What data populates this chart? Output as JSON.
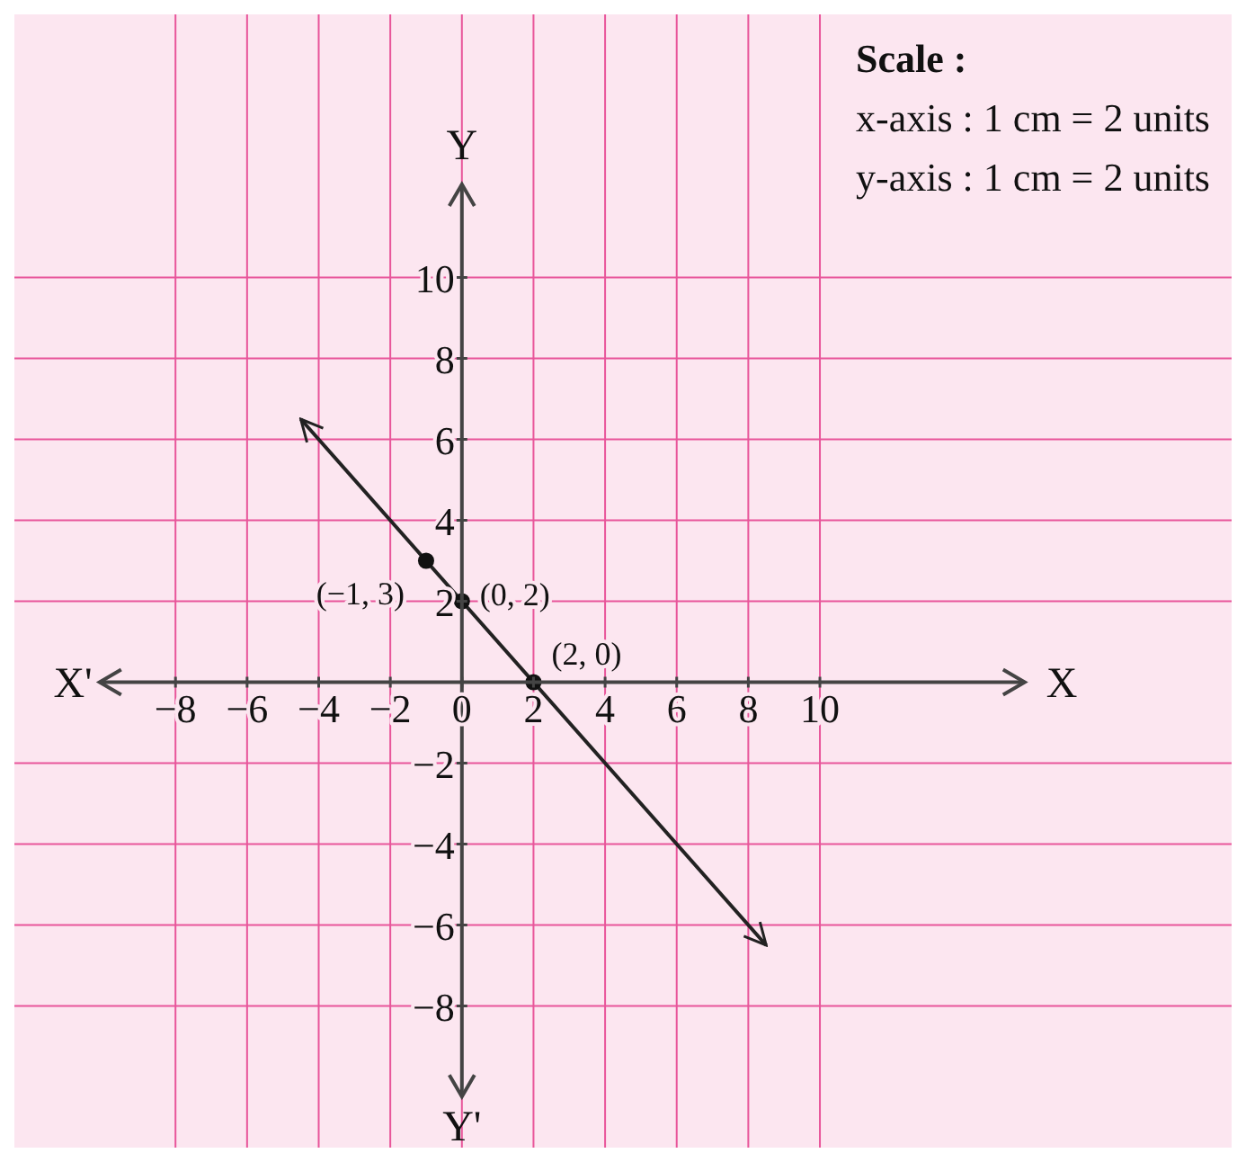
{
  "chart_data": {
    "type": "line",
    "title": "Scale :",
    "xlabel": "X",
    "ylabel": "Y",
    "annotations": [
      "x-axis : 1 cm = 2 units",
      "y-axis : 1 cm = 2 units",
      "X'",
      "Y'",
      {
        "text": "(−1, 3)",
        "x": -1,
        "y": 3
      },
      {
        "text": "(0, 2)",
        "x": 0,
        "y": 2
      },
      {
        "text": "(2, 0)",
        "x": 2,
        "y": 0
      }
    ],
    "series": [
      {
        "x": [
          -4.5,
          8.5
        ],
        "values": [
          6.5,
          -6.5
        ],
        "color": "#222222",
        "marker": "none"
      },
      {
        "type": "scatter",
        "x": [
          -1,
          0,
          2
        ],
        "values": [
          3,
          2,
          0
        ],
        "color": "#111111",
        "marker": "circle"
      }
    ],
    "xlim": [
      -12.5,
      21.5
    ],
    "ylim": [
      -11.5,
      16.5
    ],
    "xticks": [
      -8,
      -6,
      -4,
      -2,
      0,
      2,
      4,
      6,
      8,
      10
    ],
    "yticks": [
      -8,
      -6,
      -4,
      -2,
      2,
      4,
      6,
      8,
      10
    ],
    "grid": true
  }
}
